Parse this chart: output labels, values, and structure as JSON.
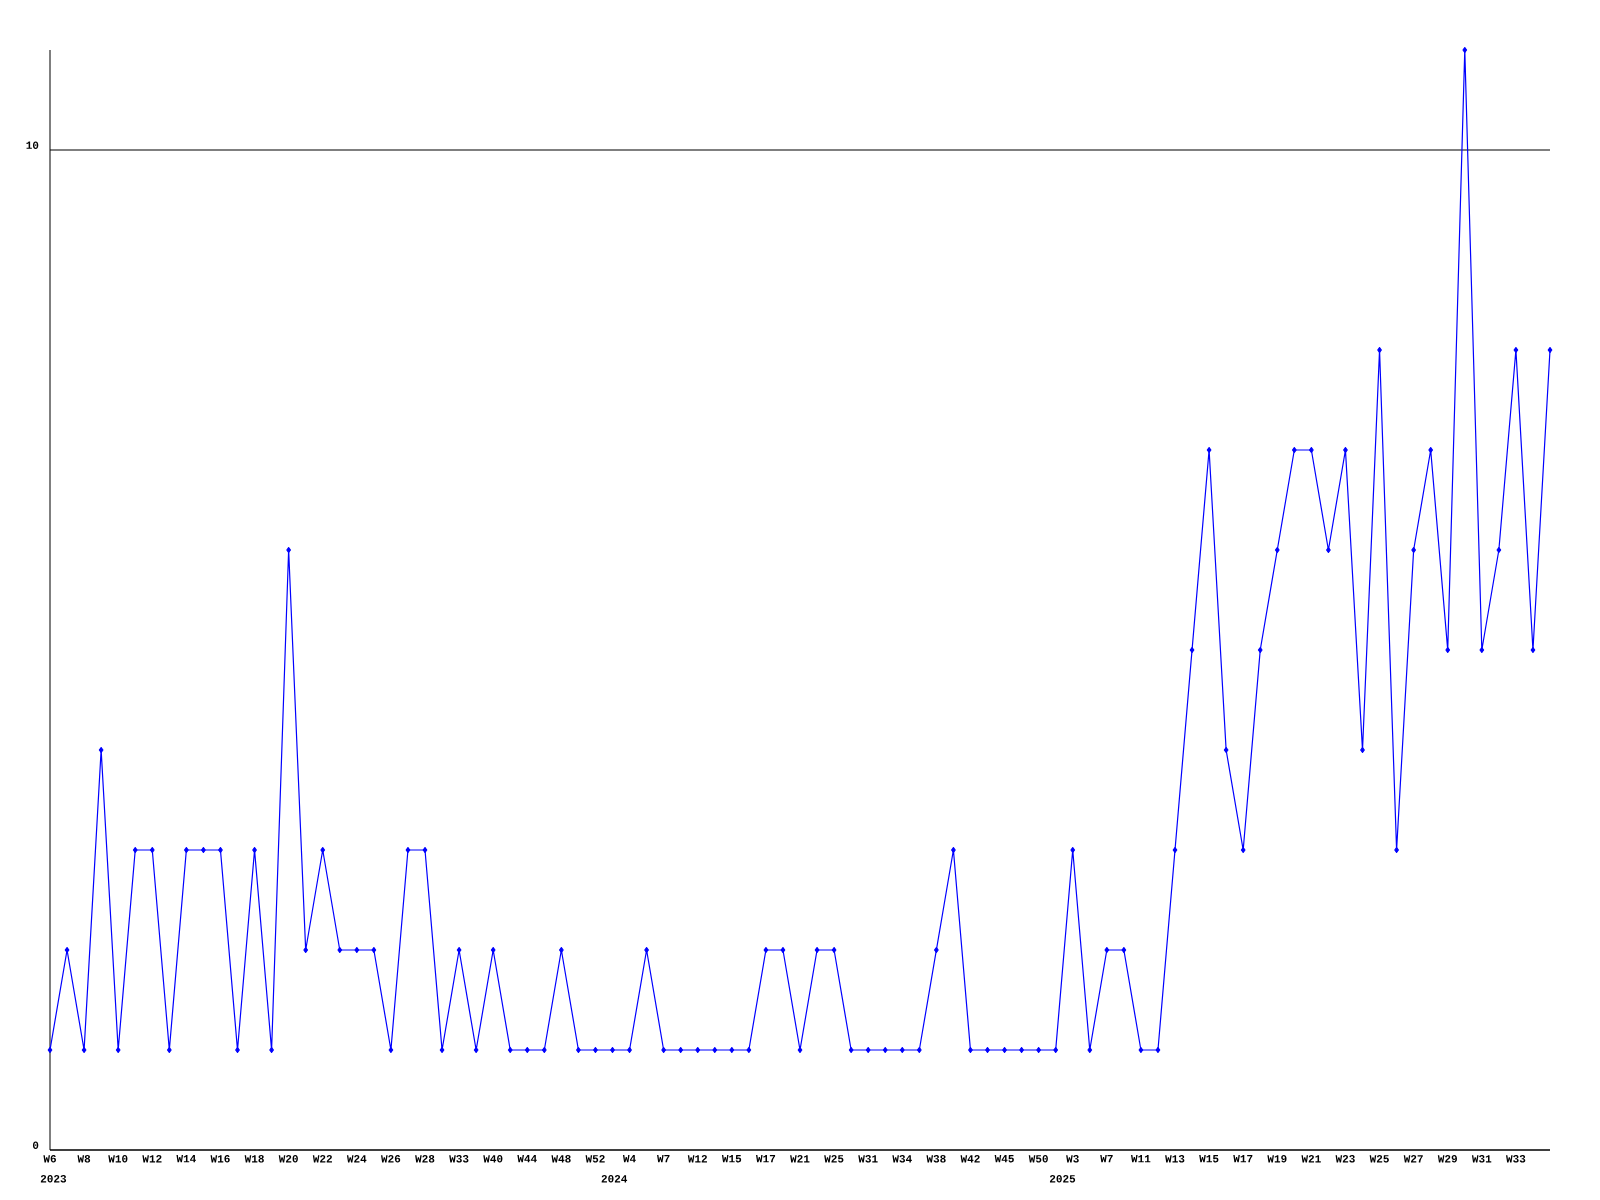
{
  "chart_data": {
    "type": "line",
    "color": "#0000ff",
    "marker": "diamond",
    "line_style": "solid",
    "grid": "y",
    "categories": [
      "W6",
      null,
      "W8",
      null,
      "W10",
      null,
      "W12",
      null,
      "W14",
      null,
      "W16",
      null,
      "W18",
      null,
      "W20",
      null,
      "W22",
      null,
      "W24",
      null,
      "W26",
      null,
      "W28",
      null,
      "W33",
      null,
      "W40",
      null,
      "W44",
      null,
      "W48",
      null,
      "W52",
      null,
      "W4",
      null,
      "W7",
      null,
      "W12",
      null,
      "W15",
      null,
      "W17",
      null,
      "W21",
      null,
      "W25",
      null,
      "W31",
      null,
      "W34",
      null,
      "W38",
      null,
      "W42",
      null,
      "W45",
      null,
      "W50",
      null,
      "W3",
      null,
      "W7",
      null,
      "W11",
      null,
      "W13",
      null,
      "W15",
      null,
      "W17",
      null,
      "W19",
      null,
      "W21",
      null,
      "W23",
      null,
      "W25",
      null,
      "W27",
      null,
      "W29",
      null,
      "W31",
      null,
      "W33",
      null,
      null
    ],
    "values": [
      1,
      2,
      1,
      4,
      1,
      3,
      3,
      1,
      3,
      3,
      3,
      1,
      3,
      1,
      6,
      2,
      3,
      2,
      2,
      2,
      1,
      3,
      3,
      1,
      2,
      1,
      2,
      1,
      1,
      1,
      2,
      1,
      1,
      1,
      1,
      2,
      1,
      1,
      1,
      1,
      1,
      1,
      2,
      2,
      1,
      2,
      2,
      1,
      1,
      1,
      1,
      1,
      2,
      3,
      1,
      1,
      1,
      1,
      1,
      1,
      3,
      1,
      2,
      2,
      1,
      1,
      3,
      5,
      7,
      4,
      3,
      5,
      6,
      7,
      7,
      6,
      7,
      4,
      8,
      3,
      6,
      7,
      5,
      11,
      5,
      6,
      8,
      5,
      8
    ],
    "ylim": [
      0,
      11
    ],
    "yticks": [
      0,
      10
    ],
    "annotations": [
      "2023",
      "2024",
      "2025"
    ]
  }
}
